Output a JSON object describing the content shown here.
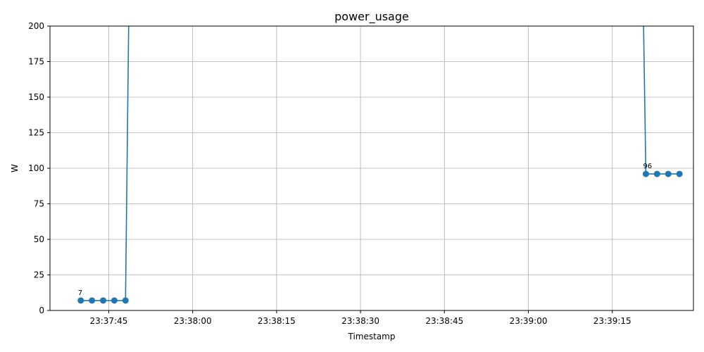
{
  "chart_data": {
    "type": "line",
    "title": "power_usage",
    "xlabel": "Timestamp",
    "ylabel": "W",
    "x_axis_type": "time",
    "xlim": [
      "23:37:34.5",
      "23:39:29.5"
    ],
    "ylim": [
      0,
      200
    ],
    "x_ticks": [
      "23:37:45",
      "23:38:00",
      "23:38:15",
      "23:38:30",
      "23:38:45",
      "23:39:00",
      "23:39:15"
    ],
    "y_ticks": [
      0,
      25,
      50,
      75,
      100,
      125,
      150,
      175,
      200
    ],
    "grid": true,
    "legend": false,
    "color": "#1f77b4",
    "series": [
      {
        "points": [
          {
            "x": "23:37:40",
            "y": 7,
            "marker": true
          },
          {
            "x": "23:37:42",
            "y": 7,
            "marker": true
          },
          {
            "x": "23:37:44",
            "y": 7,
            "marker": true
          },
          {
            "x": "23:37:46",
            "y": 7,
            "marker": true
          },
          {
            "x": "23:37:48",
            "y": 7,
            "marker": true
          },
          {
            "x": "23:37:49",
            "y": 350,
            "marker": false
          },
          {
            "x": "23:39:20",
            "y": 350,
            "marker": false
          },
          {
            "x": "23:39:21",
            "y": 96,
            "marker": true
          },
          {
            "x": "23:39:23",
            "y": 96,
            "marker": true
          },
          {
            "x": "23:39:25",
            "y": 96,
            "marker": true
          },
          {
            "x": "23:39:27",
            "y": 96,
            "marker": true
          }
        ]
      }
    ],
    "annotations": [
      {
        "text": "7",
        "x": "23:37:40",
        "y": 7
      },
      {
        "text": "96",
        "x": "23:39:21",
        "y": 96
      }
    ]
  }
}
